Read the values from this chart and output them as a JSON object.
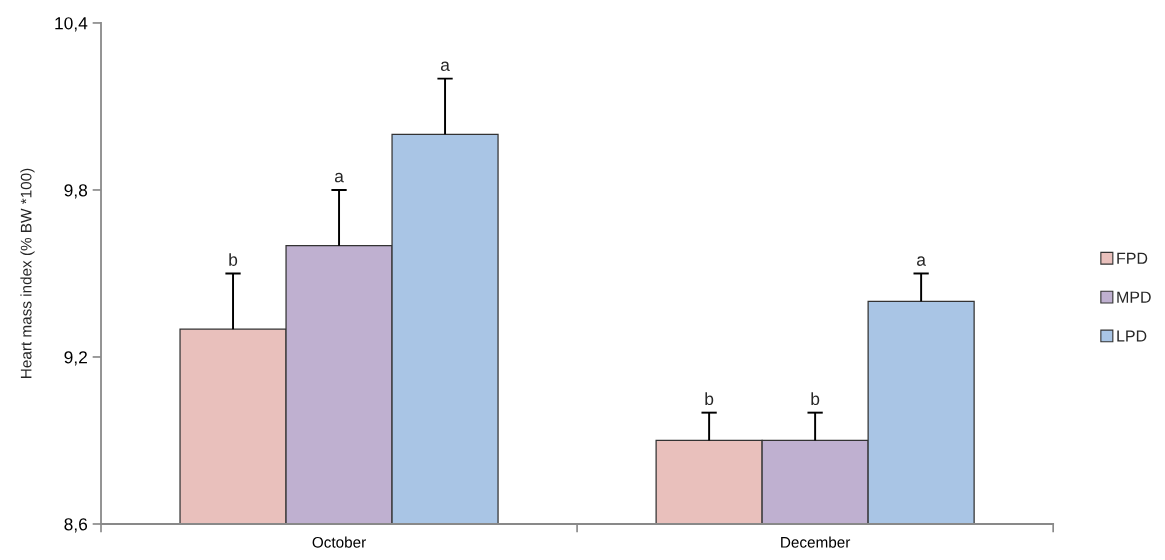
{
  "chart_data": {
    "type": "bar",
    "ylabel": "Heart mass index (% BW *100)",
    "categories": [
      "October",
      "December"
    ],
    "series": [
      {
        "name": "FPD",
        "color": "#e9c0bc",
        "values": [
          9.3,
          8.9
        ],
        "errors": [
          [
            9.3,
            9.5
          ],
          [
            8.9,
            9.0
          ]
        ]
      },
      {
        "name": "MPD",
        "color": "#bfb0d0",
        "values": [
          9.6,
          8.9
        ],
        "errors": [
          [
            9.6,
            9.8
          ],
          [
            8.9,
            9.0
          ]
        ]
      },
      {
        "name": "LPD",
        "color": "#a9c5e5",
        "values": [
          10.0,
          9.4
        ],
        "errors": [
          [
            10.0,
            10.2
          ],
          [
            9.4,
            9.5
          ]
        ]
      }
    ],
    "ylim": [
      8.6,
      10.4
    ],
    "yticks": [
      {
        "value": 8.6,
        "label": "8,6"
      },
      {
        "value": 9.2,
        "label": "9,2"
      },
      {
        "value": 9.8,
        "label": "9,8"
      },
      {
        "value": 10.4,
        "label": "10,4"
      }
    ],
    "annotations": [
      "b",
      "a",
      "a",
      "b",
      "b",
      "a"
    ],
    "grid": false,
    "legend": "right"
  }
}
